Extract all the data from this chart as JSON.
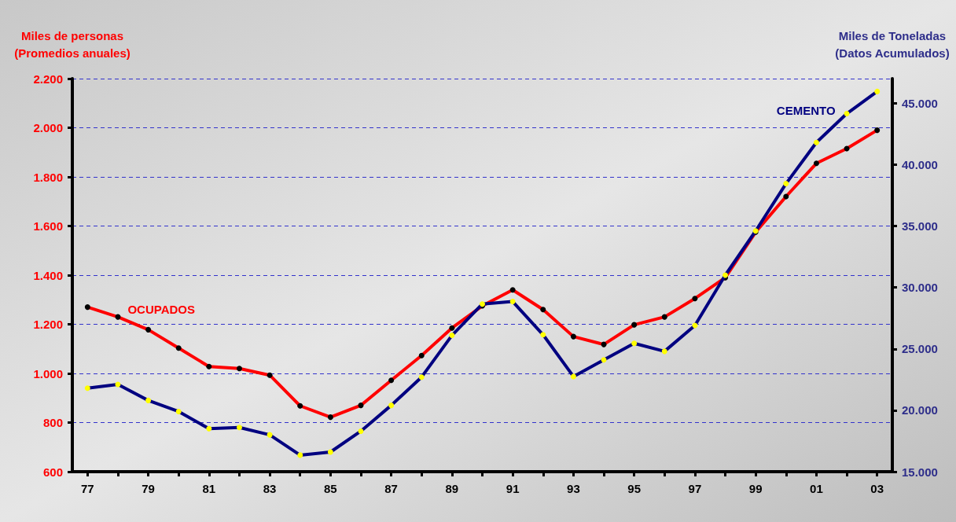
{
  "chart_data": {
    "type": "line",
    "ylabel": "Miles de personas\n(Promedios anuales)",
    "y2label": "Miles de Toneladas\n(Datos Acumulados)",
    "categories": [
      "77",
      null,
      "79",
      null,
      "81",
      null,
      "83",
      null,
      "85",
      null,
      "87",
      null,
      "89",
      null,
      "91",
      null,
      "93",
      null,
      "95",
      null,
      "97",
      null,
      "99",
      null,
      "01",
      null,
      "03"
    ],
    "series": [
      {
        "name": "OCUPADOS",
        "color": "#ff0000",
        "values": [
          1270,
          1230,
          1178,
          1103,
          1028,
          1020,
          993,
          868,
          822,
          870,
          972,
          1073,
          1185,
          1275,
          1340,
          1260,
          1150,
          1118,
          1198,
          1230,
          1305,
          1390,
          1575,
          1720,
          1855,
          1915,
          1990
        ]
      },
      {
        "name": "CEMENTO",
        "color": "#000080",
        "axis": "y2",
        "values": [
          21800,
          22100,
          20800,
          19900,
          18500,
          18600,
          18000,
          16350,
          16600,
          18300,
          20400,
          22700,
          26100,
          28650,
          28850,
          26150,
          22750,
          24100,
          25450,
          24800,
          26900,
          31000,
          34600,
          38450,
          41800,
          44150,
          45950
        ]
      }
    ],
    "ylim": [
      600,
      2200
    ],
    "yticks": [
      600,
      800,
      {
        "value": 1000,
        "label": "1.000"
      },
      {
        "value": 1200,
        "label": "1.200"
      },
      {
        "value": 1400,
        "label": "1.400"
      },
      {
        "value": 1600,
        "label": "1.600"
      },
      {
        "value": 1800,
        "label": "1.800"
      },
      {
        "value": 2000,
        "label": "2.000"
      },
      {
        "value": 2200,
        "label": "2.200"
      }
    ],
    "y2lim": [
      15000,
      47000
    ],
    "y2ticks": [
      {
        "value": 15000,
        "label": "15.000"
      },
      {
        "value": 20000,
        "label": "20.000"
      },
      {
        "value": 25000,
        "label": "25.000"
      },
      {
        "value": 30000,
        "label": "30.000"
      },
      {
        "value": 35000,
        "label": "35.000"
      },
      {
        "value": 40000,
        "label": "40.000"
      },
      {
        "value": 45000,
        "label": "45.000"
      }
    ],
    "grid": "y",
    "legend": false,
    "marker": "circle",
    "line_style": "solid"
  }
}
